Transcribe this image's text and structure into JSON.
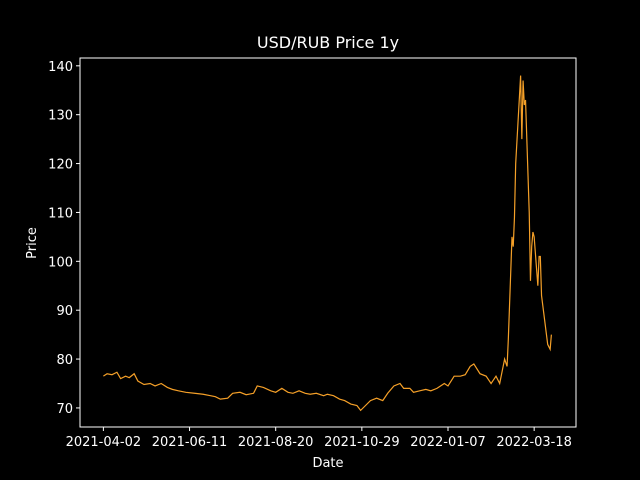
{
  "chart_data": {
    "type": "line",
    "title": "USD/RUB Price 1y",
    "x_label": "Date",
    "y_label": "Price",
    "x": [
      "2021-04-02",
      "2021-04-05",
      "2021-04-09",
      "2021-04-13",
      "2021-04-16",
      "2021-04-20",
      "2021-04-23",
      "2021-04-27",
      "2021-04-30",
      "2021-05-05",
      "2021-05-10",
      "2021-05-14",
      "2021-05-19",
      "2021-05-24",
      "2021-05-28",
      "2021-06-02",
      "2021-06-08",
      "2021-06-15",
      "2021-06-22",
      "2021-06-28",
      "2021-07-02",
      "2021-07-06",
      "2021-07-12",
      "2021-07-16",
      "2021-07-22",
      "2021-07-27",
      "2021-08-02",
      "2021-08-05",
      "2021-08-10",
      "2021-08-16",
      "2021-08-20",
      "2021-08-25",
      "2021-08-30",
      "2021-09-03",
      "2021-09-08",
      "2021-09-13",
      "2021-09-17",
      "2021-09-22",
      "2021-09-28",
      "2021-10-01",
      "2021-10-06",
      "2021-10-11",
      "2021-10-15",
      "2021-10-20",
      "2021-10-25",
      "2021-10-28",
      "2021-11-01",
      "2021-11-05",
      "2021-11-10",
      "2021-11-15",
      "2021-11-19",
      "2021-11-24",
      "2021-11-29",
      "2021-12-02",
      "2021-12-07",
      "2021-12-10",
      "2021-12-15",
      "2021-12-20",
      "2021-12-24",
      "2021-12-29",
      "2022-01-04",
      "2022-01-07",
      "2022-01-12",
      "2022-01-17",
      "2022-01-21",
      "2022-01-25",
      "2022-01-28",
      "2022-02-02",
      "2022-02-07",
      "2022-02-11",
      "2022-02-15",
      "2022-02-18",
      "2022-02-22",
      "2022-02-24",
      "2022-02-25",
      "2022-02-28",
      "2022-03-01",
      "2022-03-02",
      "2022-03-03",
      "2022-03-07",
      "2022-03-08",
      "2022-03-09",
      "2022-03-10",
      "2022-03-11",
      "2022-03-14",
      "2022-03-15",
      "2022-03-16",
      "2022-03-17",
      "2022-03-18",
      "2022-03-21",
      "2022-03-22",
      "2022-03-23",
      "2022-03-24",
      "2022-03-28",
      "2022-03-29",
      "2022-03-31",
      "2022-04-01"
    ],
    "series": [
      {
        "name": "Price",
        "color": "#f5a028",
        "values": [
          76.5,
          77,
          76.8,
          77.3,
          76,
          76.5,
          76.2,
          77,
          75.5,
          74.8,
          75,
          74.5,
          75,
          74.2,
          73.8,
          73.5,
          73.2,
          73,
          72.8,
          72.5,
          72.3,
          71.8,
          72,
          73,
          73.2,
          72.7,
          73,
          74.5,
          74.2,
          73.5,
          73.2,
          74,
          73.2,
          73,
          73.5,
          73,
          72.8,
          73,
          72.5,
          72.8,
          72.5,
          71.8,
          71.5,
          70.8,
          70.5,
          69.5,
          70.5,
          71.5,
          72,
          71.5,
          73,
          74.5,
          75,
          74,
          74,
          73.2,
          73.5,
          73.8,
          73.5,
          74,
          75,
          74.5,
          76.5,
          76.5,
          76.8,
          78.5,
          79,
          77,
          76.5,
          75,
          76.5,
          75,
          80,
          78.5,
          84,
          105,
          103,
          109,
          120,
          138,
          125,
          137,
          132,
          133,
          110,
          96,
          103,
          106,
          105,
          95,
          101,
          101,
          93,
          85,
          83,
          82,
          85
        ]
      }
    ],
    "xlim": [
      "2021-03-14",
      "2022-04-21"
    ],
    "xticks": [
      "2021-04-02",
      "2021-06-11",
      "2021-08-20",
      "2021-10-29",
      "2022-01-07",
      "2022-03-18"
    ],
    "ylim": [
      66.1,
      141.6
    ],
    "yticks": [
      70,
      80,
      90,
      100,
      110,
      120,
      130,
      140
    ]
  }
}
